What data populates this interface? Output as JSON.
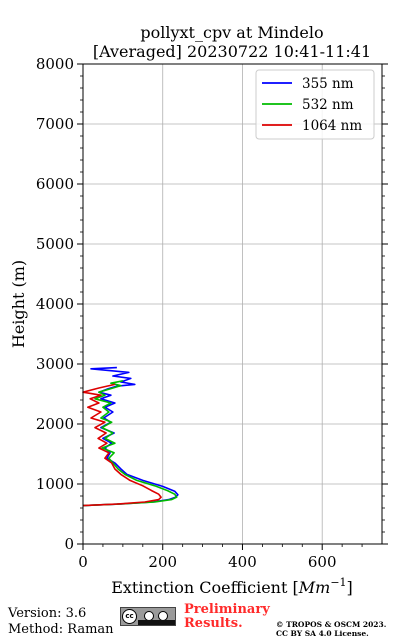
{
  "chart_data": {
    "type": "line",
    "title_line1": "pollyxt_cpv at Mindelo",
    "title_line2": "[Averaged] 20230722 10:41-11:41",
    "xlabel": "Extinction Coefficient [",
    "xlabel_unit_base": "Mm",
    "xlabel_unit_exp": "−1",
    "xlabel_end": "]",
    "ylabel": "Height (m)",
    "xlim": [
      0,
      750
    ],
    "ylim": [
      0,
      8000
    ],
    "xticks": [
      0,
      200,
      400,
      600
    ],
    "yticks": [
      0,
      1000,
      2000,
      3000,
      4000,
      5000,
      6000,
      7000,
      8000
    ],
    "grid": true,
    "legend_position": "top-right",
    "series": [
      {
        "name": "355 nm",
        "color": "#0000ff",
        "x": [
          0,
          90,
          175,
          215,
          232,
          238,
          230,
          200,
          150,
          110,
          95,
          80,
          60,
          68,
          55,
          72,
          50,
          78,
          45,
          70,
          52,
          75,
          55,
          80,
          45,
          70,
          40,
          60,
          85,
          130,
          95,
          120,
          75,
          115,
          20,
          85
        ],
        "y": [
          640,
          665,
          700,
          740,
          780,
          820,
          880,
          960,
          1060,
          1160,
          1250,
          1350,
          1430,
          1520,
          1600,
          1680,
          1760,
          1850,
          1940,
          2030,
          2100,
          2200,
          2280,
          2350,
          2420,
          2480,
          2530,
          2580,
          2630,
          2660,
          2700,
          2760,
          2800,
          2860,
          2920,
          2940
        ]
      },
      {
        "name": "532 nm",
        "color": "#00bb00",
        "x": [
          0,
          90,
          180,
          222,
          235,
          230,
          212,
          180,
          135,
          105,
          88,
          75,
          65,
          78,
          48,
          80,
          55,
          75,
          48,
          72,
          45,
          65,
          50,
          70,
          30,
          55,
          40,
          70,
          95,
          70,
          100
        ],
        "y": [
          640,
          665,
          700,
          740,
          780,
          830,
          890,
          970,
          1060,
          1160,
          1250,
          1350,
          1430,
          1520,
          1600,
          1680,
          1760,
          1850,
          1940,
          2030,
          2100,
          2200,
          2280,
          2350,
          2420,
          2480,
          2530,
          2590,
          2640,
          2680,
          2720
        ]
      },
      {
        "name": "1064 nm",
        "color": "#dd0000",
        "x": [
          0,
          85,
          155,
          190,
          196,
          190,
          172,
          150,
          118,
          95,
          80,
          72,
          55,
          65,
          40,
          60,
          38,
          58,
          30,
          55,
          20,
          45,
          12,
          40,
          18,
          45,
          0,
          40,
          80
        ],
        "y": [
          640,
          665,
          700,
          740,
          780,
          830,
          890,
          970,
          1060,
          1160,
          1250,
          1350,
          1430,
          1520,
          1600,
          1680,
          1760,
          1850,
          1940,
          2030,
          2100,
          2200,
          2280,
          2350,
          2420,
          2480,
          2530,
          2600,
          2660
        ]
      }
    ]
  },
  "footer": {
    "version": "Version: 3.6",
    "method": "Method: Raman",
    "cc_text": "cc",
    "preliminary_line1": "Preliminary",
    "preliminary_line2": "Results.",
    "copyright_line1": "© TROPOS & OSCM 2023.",
    "copyright_line2": "CC BY SA 4.0 License."
  }
}
